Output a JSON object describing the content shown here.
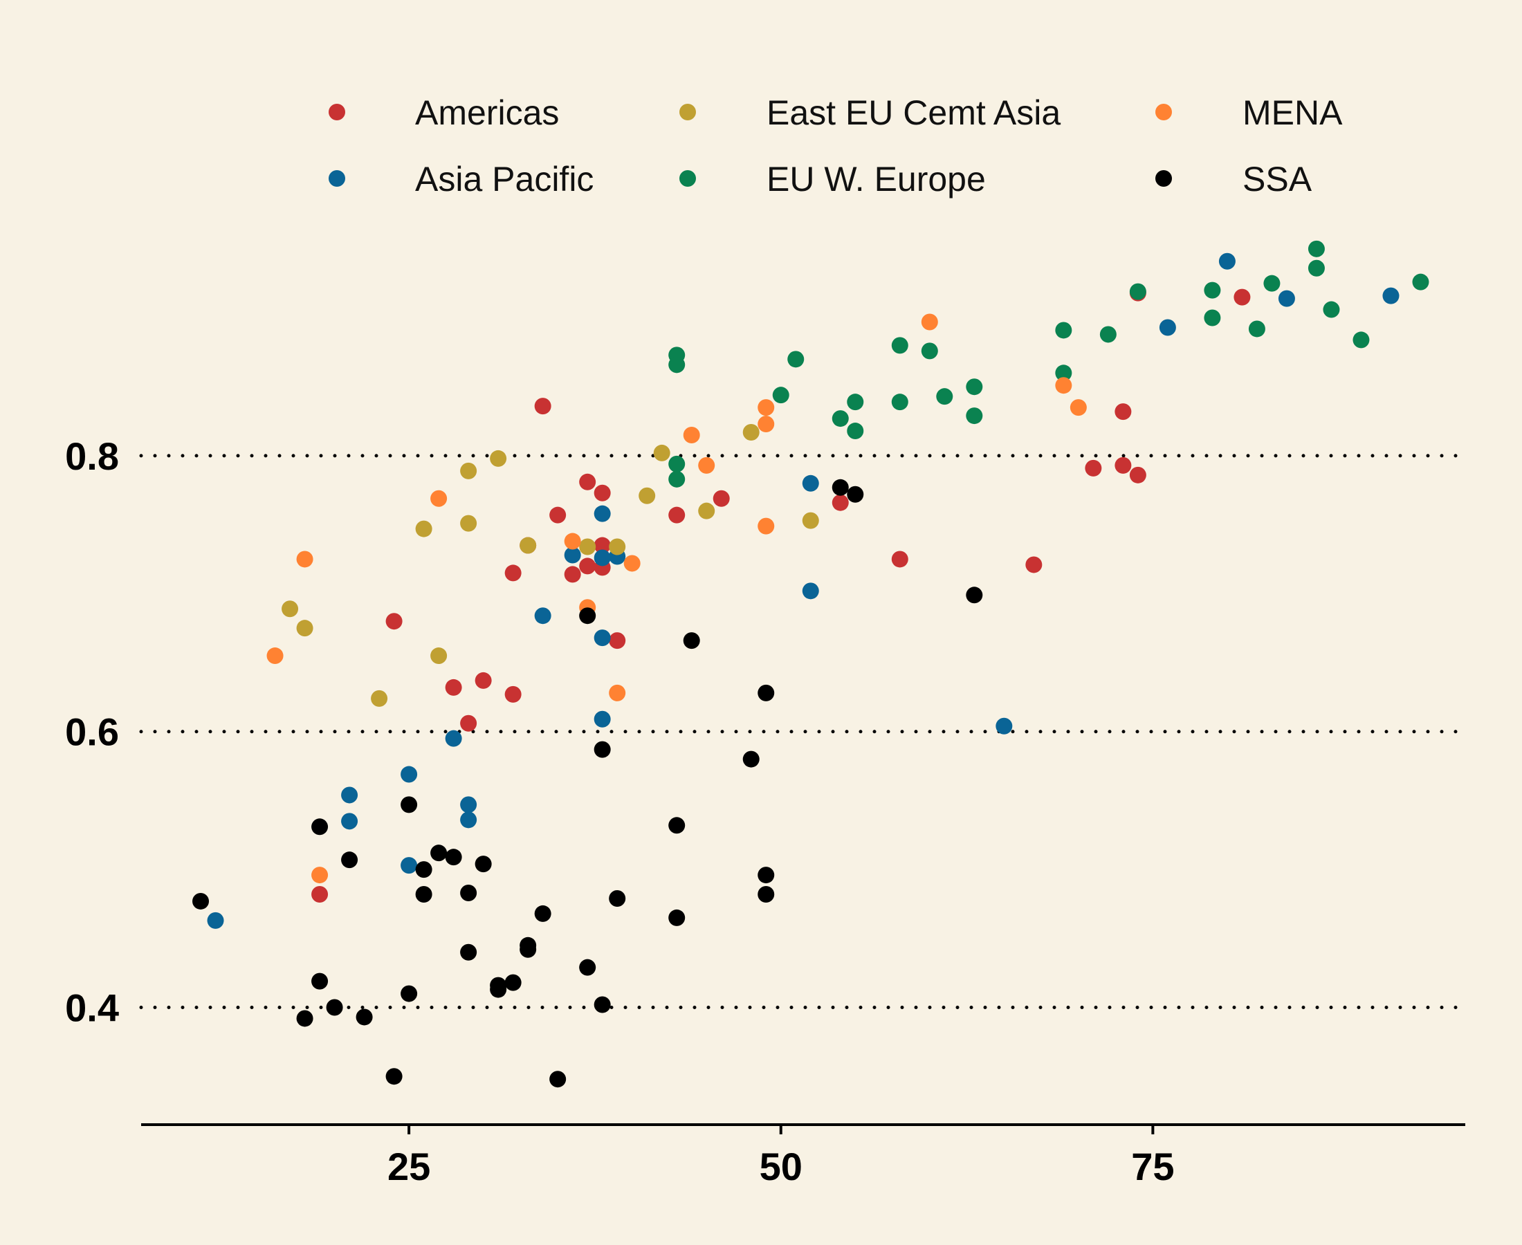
{
  "chart_data": {
    "type": "scatter",
    "title": "",
    "xlabel": "",
    "ylabel": "",
    "xlim": [
      7,
      96
    ],
    "ylim": [
      0.315,
      0.98
    ],
    "x_ticks": [
      25,
      50,
      75
    ],
    "x_tick_labels": [
      "25",
      "50",
      "75"
    ],
    "y_ticks": [
      0.4,
      0.6,
      0.8
    ],
    "y_tick_labels": [
      "0.4",
      "0.6",
      "0.8"
    ],
    "grid": "horizontal dotted",
    "legend_placement": "top",
    "series": [
      {
        "name": "Americas",
        "color": "#c83232",
        "points": [
          [
            34,
            0.836
          ],
          [
            24,
            0.68
          ],
          [
            28,
            0.632
          ],
          [
            30,
            0.637
          ],
          [
            32,
            0.627
          ],
          [
            29,
            0.606
          ],
          [
            19,
            0.482
          ],
          [
            35,
            0.757
          ],
          [
            37,
            0.781
          ],
          [
            38,
            0.773
          ],
          [
            32,
            0.715
          ],
          [
            33,
            0.735
          ],
          [
            36,
            0.714
          ],
          [
            37,
            0.72
          ],
          [
            38,
            0.719
          ],
          [
            38,
            0.735
          ],
          [
            39,
            0.666
          ],
          [
            43,
            0.757
          ],
          [
            46,
            0.769
          ],
          [
            54,
            0.766
          ],
          [
            58,
            0.725
          ],
          [
            67,
            0.721
          ],
          [
            71,
            0.791
          ],
          [
            73,
            0.793
          ],
          [
            74,
            0.786
          ],
          [
            73,
            0.832
          ],
          [
            74,
            0.918
          ],
          [
            81,
            0.915
          ]
        ]
      },
      {
        "name": "Asia Pacific",
        "color": "#0a6496",
        "points": [
          [
            12,
            0.463
          ],
          [
            21,
            0.554
          ],
          [
            21,
            0.535
          ],
          [
            25,
            0.569
          ],
          [
            25,
            0.503
          ],
          [
            28,
            0.595
          ],
          [
            29,
            0.547
          ],
          [
            29,
            0.536
          ],
          [
            34,
            0.684
          ],
          [
            36,
            0.728
          ],
          [
            38,
            0.726
          ],
          [
            39,
            0.727
          ],
          [
            38,
            0.758
          ],
          [
            38,
            0.668
          ],
          [
            38,
            0.609
          ],
          [
            52,
            0.78
          ],
          [
            52,
            0.702
          ],
          [
            65,
            0.604
          ],
          [
            76,
            0.893
          ],
          [
            80,
            0.941
          ],
          [
            84,
            0.914
          ],
          [
            91,
            0.916
          ]
        ]
      },
      {
        "name": "East EU Cemt Asia",
        "color": "#c0a032",
        "points": [
          [
            17,
            0.689
          ],
          [
            18,
            0.675
          ],
          [
            23,
            0.624
          ],
          [
            26,
            0.747
          ],
          [
            27,
            0.655
          ],
          [
            29,
            0.789
          ],
          [
            29,
            0.751
          ],
          [
            31,
            0.798
          ],
          [
            33,
            0.735
          ],
          [
            37,
            0.734
          ],
          [
            39,
            0.734
          ],
          [
            41,
            0.771
          ],
          [
            42,
            0.802
          ],
          [
            45,
            0.76
          ],
          [
            48,
            0.817
          ],
          [
            52,
            0.753
          ]
        ]
      },
      {
        "name": "EU W. Europe",
        "color": "#0a8250",
        "points": [
          [
            43,
            0.873
          ],
          [
            43,
            0.866
          ],
          [
            43,
            0.794
          ],
          [
            43,
            0.783
          ],
          [
            50,
            0.844
          ],
          [
            51,
            0.87
          ],
          [
            54,
            0.827
          ],
          [
            55,
            0.839
          ],
          [
            55,
            0.818
          ],
          [
            58,
            0.88
          ],
          [
            58,
            0.839
          ],
          [
            60,
            0.876
          ],
          [
            61,
            0.843
          ],
          [
            63,
            0.85
          ],
          [
            63,
            0.829
          ],
          [
            69,
            0.891
          ],
          [
            69,
            0.86
          ],
          [
            72,
            0.888
          ],
          [
            74,
            0.919
          ],
          [
            79,
            0.92
          ],
          [
            79,
            0.9
          ],
          [
            82,
            0.892
          ],
          [
            83,
            0.925
          ],
          [
            86,
            0.95
          ],
          [
            86,
            0.936
          ],
          [
            87,
            0.906
          ],
          [
            89,
            0.884
          ],
          [
            93,
            0.926
          ]
        ]
      },
      {
        "name": "MENA",
        "color": "#ff8232",
        "points": [
          [
            16,
            0.655
          ],
          [
            18,
            0.725
          ],
          [
            19,
            0.496
          ],
          [
            27,
            0.769
          ],
          [
            36,
            0.738
          ],
          [
            37,
            0.69
          ],
          [
            39,
            0.628
          ],
          [
            40,
            0.722
          ],
          [
            44,
            0.815
          ],
          [
            45,
            0.793
          ],
          [
            49,
            0.835
          ],
          [
            49,
            0.823
          ],
          [
            49,
            0.749
          ],
          [
            60,
            0.897
          ],
          [
            69,
            0.851
          ],
          [
            70,
            0.835
          ]
        ]
      },
      {
        "name": "SSA",
        "color": "#000000",
        "points": [
          [
            11,
            0.477
          ],
          [
            18,
            0.392
          ],
          [
            19,
            0.531
          ],
          [
            19,
            0.419
          ],
          [
            20,
            0.4
          ],
          [
            21,
            0.507
          ],
          [
            22,
            0.393
          ],
          [
            24,
            0.35
          ],
          [
            25,
            0.547
          ],
          [
            25,
            0.41
          ],
          [
            26,
            0.5
          ],
          [
            26,
            0.482
          ],
          [
            27,
            0.512
          ],
          [
            28,
            0.509
          ],
          [
            29,
            0.483
          ],
          [
            29,
            0.44
          ],
          [
            30,
            0.504
          ],
          [
            31,
            0.416
          ],
          [
            31,
            0.413
          ],
          [
            32,
            0.418
          ],
          [
            33,
            0.445
          ],
          [
            33,
            0.442
          ],
          [
            34,
            0.468
          ],
          [
            35,
            0.348
          ],
          [
            37,
            0.684
          ],
          [
            37,
            0.429
          ],
          [
            38,
            0.587
          ],
          [
            38,
            0.402
          ],
          [
            39,
            0.479
          ],
          [
            43,
            0.532
          ],
          [
            43,
            0.465
          ],
          [
            44,
            0.666
          ],
          [
            48,
            0.58
          ],
          [
            49,
            0.628
          ],
          [
            49,
            0.496
          ],
          [
            49,
            0.482
          ],
          [
            54,
            0.777
          ],
          [
            55,
            0.772
          ],
          [
            63,
            0.699
          ]
        ]
      }
    ]
  }
}
